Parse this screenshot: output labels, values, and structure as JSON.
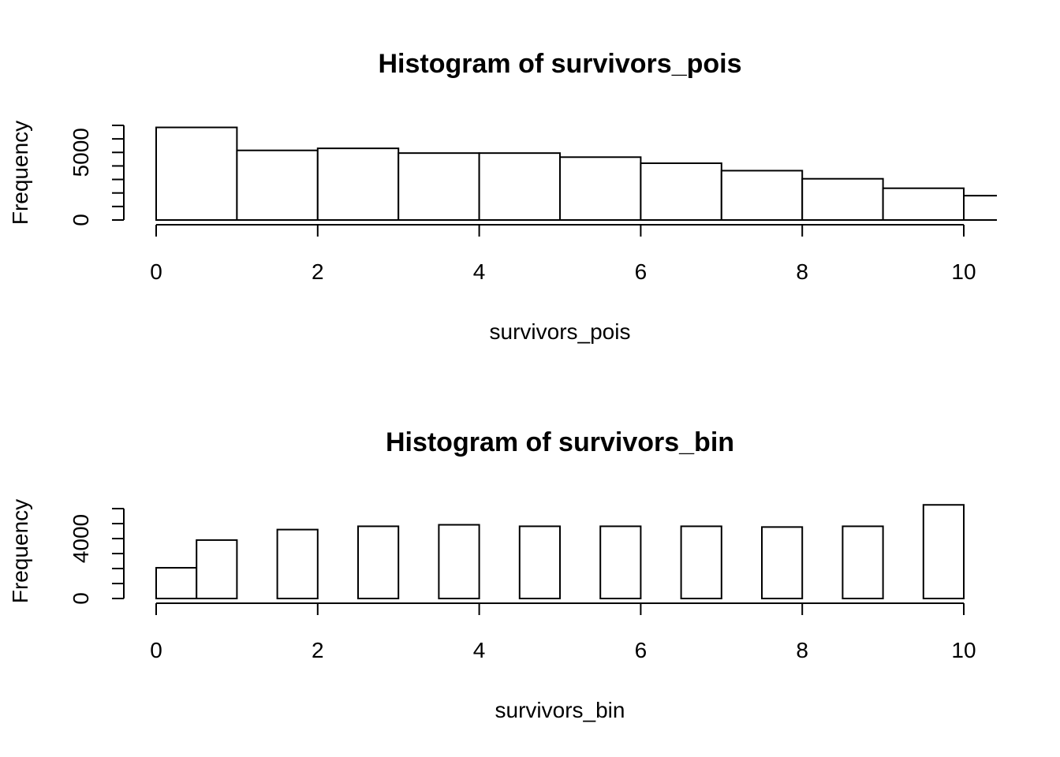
{
  "chart_data": [
    {
      "type": "bar",
      "title": "Histogram of survivors_pois",
      "xlabel": "survivors_pois",
      "ylabel": "Frequency",
      "xlim": [
        0,
        10.4
      ],
      "ylim": [
        0,
        7000
      ],
      "x_ticks": [
        0,
        2,
        4,
        6,
        8,
        10
      ],
      "y_ticks": [
        0,
        5000
      ],
      "y_minor_ticks": [
        0,
        1000,
        2000,
        3000,
        4000,
        5000,
        6000,
        7000
      ],
      "bins": [
        {
          "start": 0,
          "end": 1,
          "count": 6850
        },
        {
          "start": 1,
          "end": 2,
          "count": 5150
        },
        {
          "start": 2,
          "end": 3,
          "count": 5300
        },
        {
          "start": 3,
          "end": 4,
          "count": 4950
        },
        {
          "start": 4,
          "end": 5,
          "count": 4950
        },
        {
          "start": 5,
          "end": 6,
          "count": 4650
        },
        {
          "start": 6,
          "end": 7,
          "count": 4200
        },
        {
          "start": 7,
          "end": 8,
          "count": 3650
        },
        {
          "start": 8,
          "end": 9,
          "count": 3050
        },
        {
          "start": 9,
          "end": 10,
          "count": 2350
        },
        {
          "start": 10,
          "end": 11,
          "count": 1800
        }
      ]
    },
    {
      "type": "bar",
      "title": "Histogram of survivors_bin",
      "xlabel": "survivors_bin",
      "ylabel": "Frequency",
      "xlim": [
        0,
        10
      ],
      "ylim": [
        0,
        6000
      ],
      "x_ticks": [
        0,
        2,
        4,
        6,
        8,
        10
      ],
      "y_ticks": [
        0,
        4000
      ],
      "y_minor_ticks": [
        0,
        1000,
        2000,
        3000,
        4000,
        5000,
        6000
      ],
      "bins": [
        {
          "start": 0,
          "end": 0.5,
          "count": 2050
        },
        {
          "start": 0.5,
          "end": 1,
          "count": 3900
        },
        {
          "start": 1,
          "end": 1.5,
          "count": 0
        },
        {
          "start": 1.5,
          "end": 2,
          "count": 4600
        },
        {
          "start": 2,
          "end": 2.5,
          "count": 0
        },
        {
          "start": 2.5,
          "end": 3,
          "count": 4820
        },
        {
          "start": 3,
          "end": 3.5,
          "count": 0
        },
        {
          "start": 3.5,
          "end": 4,
          "count": 4920
        },
        {
          "start": 4,
          "end": 4.5,
          "count": 0
        },
        {
          "start": 4.5,
          "end": 5,
          "count": 4820
        },
        {
          "start": 5,
          "end": 5.5,
          "count": 0
        },
        {
          "start": 5.5,
          "end": 6,
          "count": 4820
        },
        {
          "start": 6,
          "end": 6.5,
          "count": 0
        },
        {
          "start": 6.5,
          "end": 7,
          "count": 4820
        },
        {
          "start": 7,
          "end": 7.5,
          "count": 0
        },
        {
          "start": 7.5,
          "end": 8,
          "count": 4770
        },
        {
          "start": 8,
          "end": 8.5,
          "count": 0
        },
        {
          "start": 8.5,
          "end": 9,
          "count": 4820
        },
        {
          "start": 9,
          "end": 9.5,
          "count": 0
        },
        {
          "start": 9.5,
          "end": 10,
          "count": 6250
        }
      ]
    }
  ]
}
